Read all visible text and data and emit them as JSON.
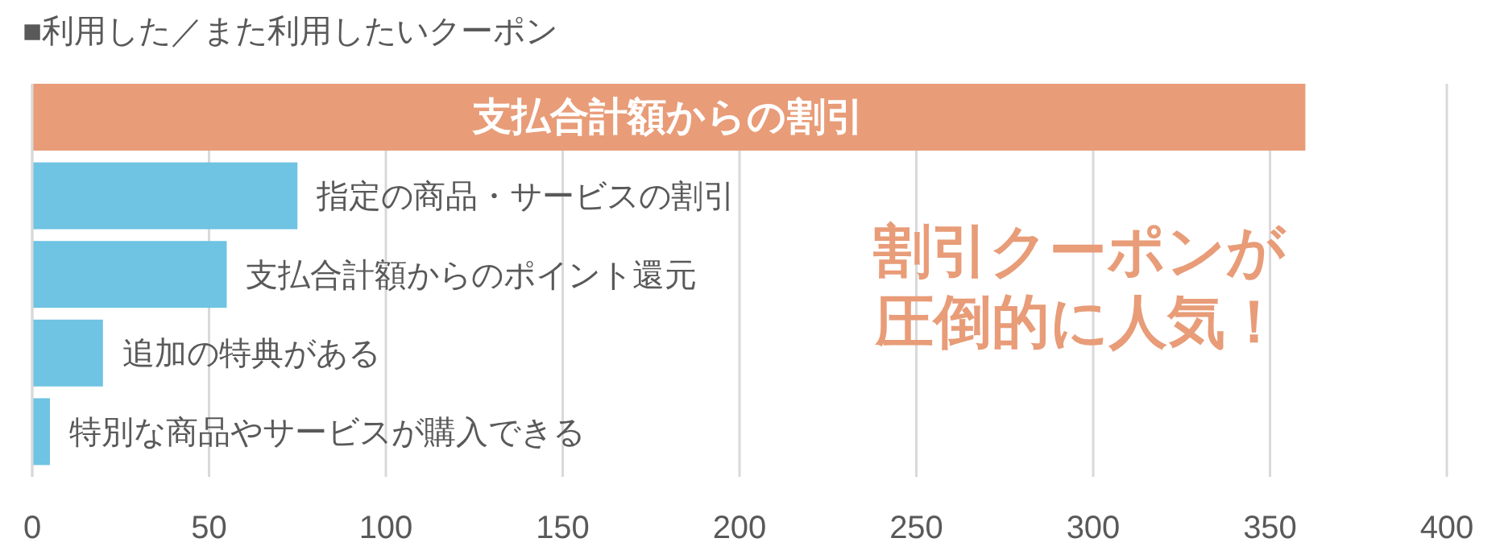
{
  "chart_data": {
    "type": "bar",
    "orientation": "horizontal",
    "title": "■利用した／また利用したいクーポン",
    "categories": [
      "支払合計額からの割引",
      "指定の商品・サービスの割引",
      "支払合計額からのポイント還元",
      "追加の特典がある",
      "特別な商品やサービスが購入できる"
    ],
    "values": [
      360,
      75,
      55,
      20,
      5
    ],
    "colors": [
      "#e89c78",
      "#6fc3e3",
      "#6fc3e3",
      "#6fc3e3",
      "#6fc3e3"
    ],
    "xlim": [
      0,
      400
    ],
    "xticks": [
      0,
      50,
      100,
      150,
      200,
      250,
      300,
      350,
      400
    ],
    "grid": "x",
    "annotations": [
      "割引クーポンが",
      "圧倒的に人気！"
    ]
  }
}
